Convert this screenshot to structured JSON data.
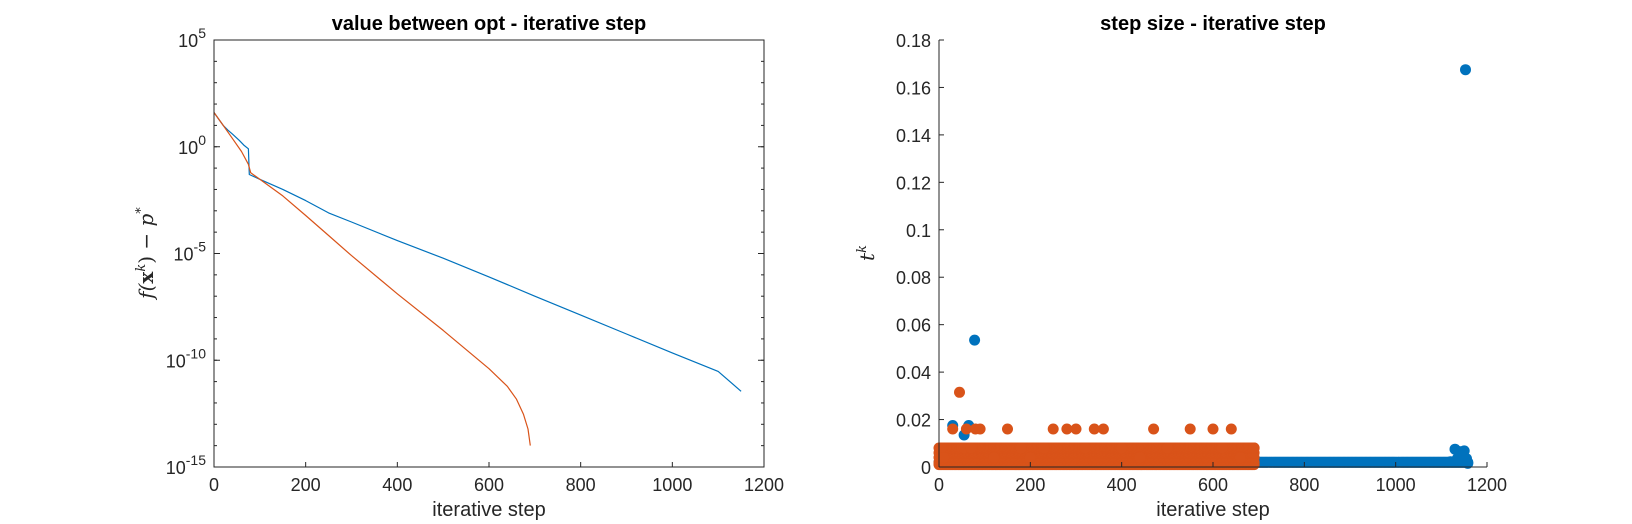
{
  "chart_data": [
    {
      "type": "line",
      "title": "value between opt - iterative step",
      "xlabel": "iterative step",
      "ylabel": "f(x^k) − p*",
      "ylabel_parts": [
        "f(",
        "x",
        "k",
        ") − ",
        "p",
        "*"
      ],
      "yscale": "log",
      "xlim": [
        0,
        1200
      ],
      "ylim": [
        1e-15,
        100000.0
      ],
      "x_ticks": [
        "0",
        "200",
        "400",
        "600",
        "800",
        "1000",
        "1200"
      ],
      "y_ticks": [
        {
          "base": "10",
          "exp": "-15"
        },
        {
          "base": "10",
          "exp": "-10"
        },
        {
          "base": "10",
          "exp": "-5"
        },
        {
          "base": "10",
          "exp": "0"
        },
        {
          "base": "10",
          "exp": "5"
        }
      ],
      "grid": false,
      "series": [
        {
          "color": "#0072bd",
          "points": [
            [
              0,
              40
            ],
            [
              10,
              20
            ],
            [
              20,
              10
            ],
            [
              30,
              6
            ],
            [
              40,
              4
            ],
            [
              55,
              2
            ],
            [
              65,
              1.2
            ],
            [
              75,
              0.8
            ],
            [
              77,
              0.05
            ],
            [
              100,
              0.03
            ],
            [
              150,
              0.01
            ],
            [
              200,
              0.003
            ],
            [
              250,
              0.0008
            ],
            [
              300,
              0.0003
            ],
            [
              400,
              4e-05
            ],
            [
              500,
              6e-06
            ],
            [
              600,
              8e-07
            ],
            [
              700,
              1e-07
            ],
            [
              800,
              1.3e-08
            ],
            [
              900,
              1.7e-09
            ],
            [
              1000,
              2.2e-10
            ],
            [
              1100,
              3e-11
            ],
            [
              1150,
              3.5e-12
            ]
          ]
        },
        {
          "color": "#d95319",
          "points": [
            [
              0,
              40
            ],
            [
              20,
              10
            ],
            [
              40,
              2.5
            ],
            [
              60,
              0.6
            ],
            [
              75,
              0.15
            ],
            [
              80,
              0.06
            ],
            [
              100,
              0.03
            ],
            [
              150,
              0.005
            ],
            [
              200,
              0.0006
            ],
            [
              250,
              7e-05
            ],
            [
              300,
              8e-06
            ],
            [
              400,
              1.3e-07
            ],
            [
              500,
              2.5e-09
            ],
            [
              600,
              4e-11
            ],
            [
              640,
              6e-12
            ],
            [
              660,
              1.5e-12
            ],
            [
              675,
              3e-13
            ],
            [
              685,
              6e-14
            ],
            [
              690,
              1e-14
            ]
          ]
        }
      ]
    },
    {
      "type": "scatter",
      "title": "step size - iterative step",
      "xlabel": "iterative step",
      "ylabel": "t^k",
      "ylabel_parts": [
        "t",
        "k"
      ],
      "xlim": [
        0,
        1200
      ],
      "ylim": [
        0,
        0.18
      ],
      "x_ticks": [
        "0",
        "200",
        "400",
        "600",
        "800",
        "1000",
        "1200"
      ],
      "y_ticks": [
        "0",
        "0.02",
        "0.04",
        "0.06",
        "0.08",
        "0.1",
        "0.12",
        "0.14",
        "0.16",
        "0.18"
      ],
      "grid": false,
      "series": [
        {
          "color": "#0072bd",
          "points": [
            [
              5,
              0.0022
            ],
            [
              8,
              0.002
            ],
            [
              12,
              0.0021
            ],
            [
              20,
              0.0024
            ],
            [
              30,
              0.0175
            ],
            [
              35,
              0.0045
            ],
            [
              50,
              0.0015
            ],
            [
              55,
              0.0135
            ],
            [
              60,
              0.0045
            ],
            [
              65,
              0.0175
            ],
            [
              70,
              0.004
            ],
            [
              78,
              0.0535
            ],
            [
              90,
              0.0022
            ],
            [
              150,
              0.0021
            ],
            [
              200,
              0.0048
            ],
            [
              250,
              0.0022
            ],
            [
              300,
              0.0022
            ],
            [
              1120,
              0.0022
            ],
            [
              1130,
              0.0075
            ],
            [
              1135,
              0.0035
            ],
            [
              1140,
              0.0065
            ],
            [
              1145,
              0.0025
            ],
            [
              1150,
              0.0068
            ],
            [
              1153,
              0.1675
            ],
            [
              1155,
              0.0035
            ],
            [
              1158,
              0.0015
            ]
          ],
          "band": {
            "x": [
              0,
              1160
            ],
            "y": 0.002
          }
        },
        {
          "color": "#d95319",
          "points": [
            [
              5,
              0.008
            ],
            [
              10,
              0.004
            ],
            [
              30,
              0.016
            ],
            [
              45,
              0.0315
            ],
            [
              50,
              0.008
            ],
            [
              55,
              0.008
            ],
            [
              60,
              0.016
            ],
            [
              70,
              0.008
            ],
            [
              80,
              0.016
            ],
            [
              90,
              0.016
            ],
            [
              120,
              0.004
            ],
            [
              150,
              0.016
            ],
            [
              180,
              0.008
            ],
            [
              200,
              0.004
            ],
            [
              230,
              0.008
            ],
            [
              250,
              0.016
            ],
            [
              280,
              0.016
            ],
            [
              300,
              0.016
            ],
            [
              320,
              0.008
            ],
            [
              340,
              0.016
            ],
            [
              360,
              0.016
            ],
            [
              400,
              0.008
            ],
            [
              440,
              0.004
            ],
            [
              470,
              0.016
            ],
            [
              500,
              0.008
            ],
            [
              550,
              0.016
            ],
            [
              600,
              0.016
            ],
            [
              620,
              0.008
            ],
            [
              640,
              0.016
            ],
            [
              660,
              0.004
            ],
            [
              690,
              0.008
            ]
          ],
          "band": {
            "x": [
              0,
              692
            ],
            "levels": [
              0.001,
              0.002,
              0.004,
              0.006,
              0.008
            ]
          }
        }
      ]
    }
  ]
}
